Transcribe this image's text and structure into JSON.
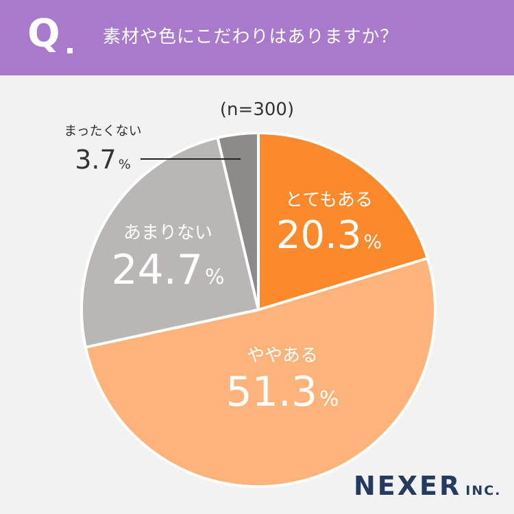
{
  "header": {
    "q_mark": "Q",
    "question": "素材や色にこだわりはありますか？"
  },
  "chart_data": {
    "type": "pie",
    "sample_note": "(n=300)",
    "start": "12 o'clock",
    "direction": "clockwise",
    "slices": [
      {
        "label": "とてもある",
        "value": 20.3,
        "value_text": "20.3",
        "color": "#fc8a2c",
        "text_color": "#ffffff"
      },
      {
        "label": "ややある",
        "value": 51.3,
        "value_text": "51.3",
        "color": "#fdb37a",
        "text_color": "#ffffff"
      },
      {
        "label": "あまりない",
        "value": 24.7,
        "value_text": "24.7",
        "color": "#b9b6b5",
        "text_color": "#ffffff"
      },
      {
        "label": "まったくない",
        "value": 3.7,
        "value_text": "3.7",
        "color": "#8d8b8a",
        "text_color": "#333333"
      }
    ],
    "percent_sign": "%"
  },
  "brand": {
    "name": "NEXER",
    "suffix": "INC."
  }
}
